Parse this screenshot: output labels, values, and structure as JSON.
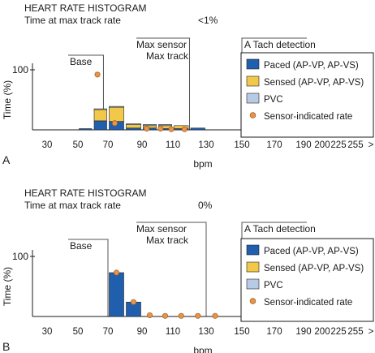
{
  "colors": {
    "paced": "#1f5fae",
    "sensed": "#f2c84b",
    "pvc": "#b8cbe6",
    "rate_dot": "#e8944a",
    "rate_dot_stroke": "#a05a20",
    "axis": "#1a1a1a",
    "annot": "#555555"
  },
  "chart_data": [
    {
      "panel_label": "A",
      "type": "bar",
      "title": "HEART RATE HISTOGRAM",
      "subtitle_label": "Time at max track rate",
      "subtitle_value": "<1%",
      "xlabel": "bpm",
      "ylabel": "Time (%)",
      "ylim": [
        0,
        100
      ],
      "y_ticks": [
        {
          "label": "100",
          "value": 100
        }
      ],
      "x_ticks": [
        "30",
        "50",
        "70",
        "90",
        "110",
        "130",
        "150",
        "170",
        "190",
        "200",
        "225",
        "255",
        ">"
      ],
      "x_tick_values": [
        30,
        50,
        70,
        90,
        110,
        130,
        150,
        170,
        190,
        200,
        225,
        255
      ],
      "annotations": {
        "base": "Base",
        "max_sensor_1": "Max sensor",
        "max_sensor_2": "Max track",
        "atach": "A Tach detection"
      },
      "annotation_rates": {
        "base": 67,
        "max_sensor": 120,
        "atach": 150
      },
      "legend": [
        "Paced (AP-VP, AP-VS)",
        "Sensed (AP-VP, AP-VS)",
        "PVC",
        "Sensor-indicated rate"
      ],
      "legend_position": "right",
      "bin_width": 10,
      "x": [
        50,
        60,
        70,
        80,
        90,
        100,
        110,
        120
      ],
      "series": [
        {
          "name": "Paced (AP-VP, AP-VS)",
          "values": [
            2,
            15,
            14,
            3,
            3,
            2,
            2,
            3
          ]
        },
        {
          "name": "Sensed (AP-VP, AP-VS)",
          "values": [
            0,
            19,
            24,
            6,
            4,
            5,
            5,
            0
          ]
        },
        {
          "name": "PVC",
          "values": [
            0,
            1,
            1,
            1,
            2,
            2,
            0,
            0
          ]
        }
      ],
      "sensor_rate": {
        "name": "Sensor-indicated rate",
        "x": [
          63,
          74,
          93,
          102,
          109,
          117
        ],
        "y": [
          92,
          11,
          2,
          2,
          1,
          1
        ]
      }
    },
    {
      "panel_label": "B",
      "type": "bar",
      "title": "HEART RATE HISTOGRAM",
      "subtitle_label": "Time at max track rate",
      "subtitle_value": "0%",
      "xlabel": "bpm",
      "ylabel": "Time (%)",
      "ylim": [
        0,
        100
      ],
      "y_ticks": [
        {
          "label": "100",
          "value": 100
        }
      ],
      "x_ticks": [
        "30",
        "50",
        "70",
        "90",
        "110",
        "130",
        "150",
        "170",
        "190",
        "200",
        "225",
        "255",
        ">"
      ],
      "x_tick_values": [
        30,
        50,
        70,
        90,
        110,
        130,
        150,
        170,
        190,
        200,
        225,
        255
      ],
      "annotations": {
        "base": "Base",
        "max_sensor_1": "Max sensor",
        "max_sensor_2": "Max track",
        "atach": "A Tach detection"
      },
      "annotation_rates": {
        "base": 70,
        "max_sensor": 130,
        "atach": 150
      },
      "legend": [
        "Paced (AP-VP, AP-VS)",
        "Sensed (AP-VP, AP-VS)",
        "PVC",
        "Sensor-indicated rate"
      ],
      "legend_position": "right",
      "bin_width": 10,
      "x": [
        70,
        80
      ],
      "series": [
        {
          "name": "Paced (AP-VP, AP-VS)",
          "values": [
            73,
            24
          ]
        },
        {
          "name": "Sensed (AP-VP, AP-VS)",
          "values": [
            0,
            0
          ]
        },
        {
          "name": "PVC",
          "values": [
            0,
            0
          ]
        }
      ],
      "sensor_rate": {
        "name": "Sensor-indicated rate",
        "x": [
          75,
          85,
          95,
          105,
          115,
          125,
          135
        ],
        "y": [
          73,
          24,
          2,
          1,
          1,
          1,
          1
        ]
      }
    }
  ]
}
